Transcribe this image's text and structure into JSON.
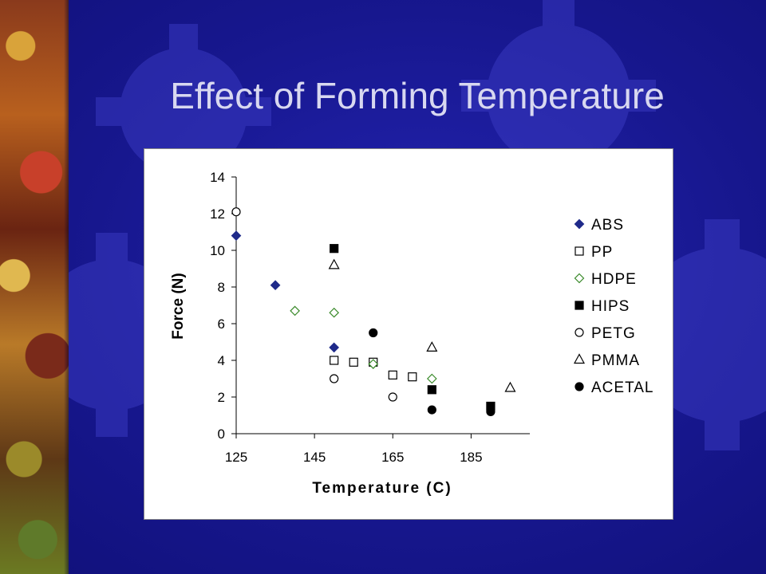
{
  "slide": {
    "title": "Effect of Forming Temperature"
  },
  "colors": {
    "background": "#1a1a9a",
    "title_text": "#d8d8f0",
    "abs": "#1f2a8a",
    "hdpe": "#3a8a2a"
  },
  "chart_data": {
    "type": "scatter",
    "xlabel": "Temperature (C)",
    "ylabel": "Force (N)",
    "xlim": [
      125,
      200
    ],
    "ylim": [
      0,
      14
    ],
    "x_ticks": [
      125,
      145,
      165,
      185
    ],
    "y_ticks": [
      0,
      2,
      4,
      6,
      8,
      10,
      12,
      14
    ],
    "grid": false,
    "legend_position": "right",
    "series": [
      {
        "name": "ABS",
        "marker": "diamond-filled",
        "color": "#1f2a8a",
        "points": [
          [
            125,
            10.8
          ],
          [
            135,
            8.1
          ],
          [
            150,
            4.7
          ]
        ]
      },
      {
        "name": "PP",
        "marker": "square-open",
        "color": "#000000",
        "points": [
          [
            150,
            4.0
          ],
          [
            155,
            3.9
          ],
          [
            160,
            3.9
          ],
          [
            165,
            3.2
          ],
          [
            170,
            3.1
          ]
        ]
      },
      {
        "name": "HDPE",
        "marker": "diamond-open",
        "color": "#3a8a2a",
        "points": [
          [
            140,
            6.7
          ],
          [
            150,
            6.6
          ],
          [
            160,
            3.8
          ],
          [
            175,
            3.0
          ]
        ]
      },
      {
        "name": "HIPS",
        "marker": "square-filled",
        "color": "#000000",
        "points": [
          [
            150,
            10.1
          ],
          [
            175,
            2.4
          ],
          [
            190,
            1.5
          ]
        ]
      },
      {
        "name": "PETG",
        "marker": "circle-open",
        "color": "#000000",
        "points": [
          [
            125,
            12.1
          ],
          [
            150,
            3.0
          ],
          [
            165,
            2.0
          ]
        ]
      },
      {
        "name": "PMMA",
        "marker": "triangle-open",
        "color": "#000000",
        "points": [
          [
            150,
            9.2
          ],
          [
            175,
            4.7
          ],
          [
            195,
            2.5
          ]
        ]
      },
      {
        "name": "ACETAL",
        "marker": "circle-filled",
        "color": "#000000",
        "points": [
          [
            160,
            5.5
          ],
          [
            175,
            1.3
          ],
          [
            190,
            1.2
          ]
        ]
      }
    ]
  }
}
